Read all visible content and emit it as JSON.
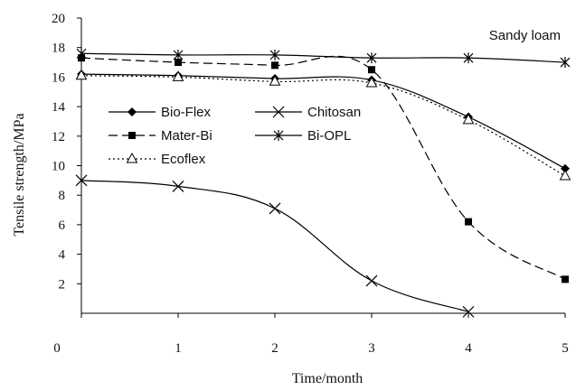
{
  "chart_data": {
    "type": "line",
    "title": "",
    "annotation": "Sandy loam",
    "xlabel": "Time/month",
    "ylabel": "Tensile strength/MPa",
    "xlim": [
      0,
      5
    ],
    "ylim": [
      0,
      20
    ],
    "x_ticks": [
      "0",
      "1",
      "2",
      "3",
      "4",
      "5"
    ],
    "y_ticks": [
      "2",
      "4",
      "6",
      "8",
      "10",
      "12",
      "14",
      "16",
      "18",
      "20"
    ],
    "grid": false,
    "legend_position": "left",
    "series": [
      {
        "name": "Bio-Flex",
        "marker": "diamond",
        "dash": "solid",
        "points": [
          [
            0,
            16.2
          ],
          [
            1,
            16.1
          ],
          [
            2,
            15.9
          ],
          [
            3,
            15.8
          ],
          [
            4,
            13.3
          ],
          [
            5,
            9.8
          ]
        ]
      },
      {
        "name": "Mater-Bi",
        "marker": "square",
        "dash": "long-dash",
        "points": [
          [
            0,
            17.3
          ],
          [
            1,
            17.0
          ],
          [
            2,
            16.8
          ],
          [
            3,
            16.5
          ],
          [
            4,
            6.2
          ],
          [
            5,
            2.3
          ]
        ]
      },
      {
        "name": "Ecoflex",
        "marker": "triangle-open",
        "dash": "dotted",
        "points": [
          [
            0,
            16.1
          ],
          [
            1,
            16.0
          ],
          [
            2,
            15.7
          ],
          [
            3,
            15.6
          ],
          [
            4,
            13.1
          ],
          [
            5,
            9.3
          ]
        ]
      },
      {
        "name": "Chitosan",
        "marker": "x",
        "dash": "solid",
        "points": [
          [
            0,
            9.0
          ],
          [
            1,
            8.6
          ],
          [
            2,
            7.1
          ],
          [
            3,
            2.2
          ],
          [
            4,
            0.1
          ]
        ]
      },
      {
        "name": "Bi-OPL",
        "marker": "asterisk",
        "dash": "solid",
        "points": [
          [
            0,
            17.6
          ],
          [
            1,
            17.5
          ],
          [
            2,
            17.5
          ],
          [
            3,
            17.3
          ],
          [
            4,
            17.3
          ],
          [
            5,
            17.0
          ]
        ]
      }
    ]
  }
}
